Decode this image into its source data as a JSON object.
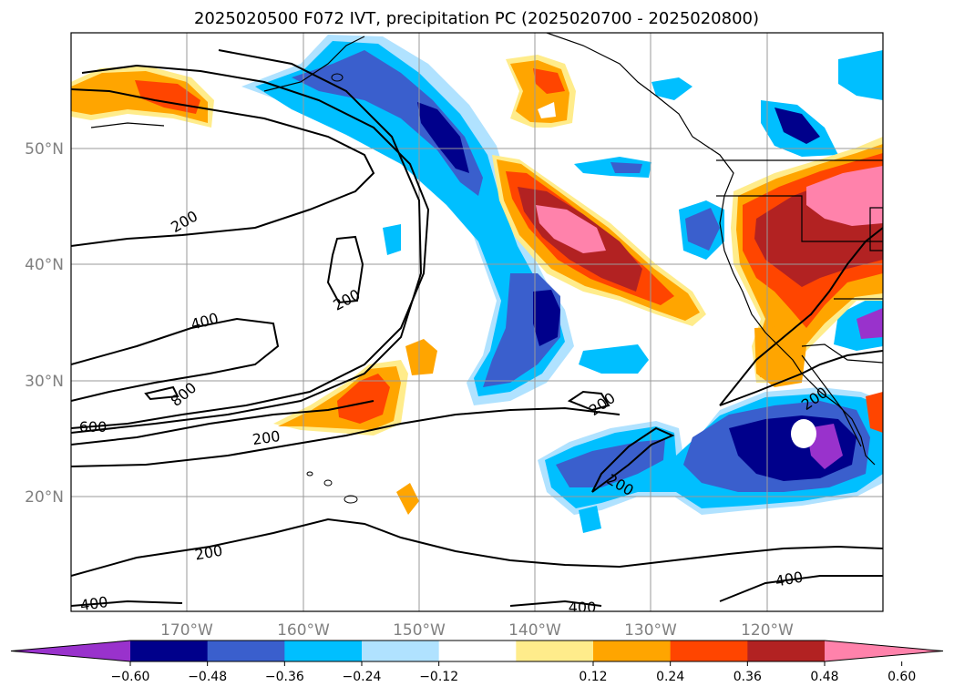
{
  "map": {
    "title": "2025020500 F072 IVT, precipitation PC (2025020700 - 2025020800)",
    "lon_labels": [
      "170°W",
      "160°W",
      "150°W",
      "140°W",
      "130°W",
      "120°W"
    ],
    "lat_labels": [
      "50°N",
      "40°N",
      "30°N",
      "20°N"
    ],
    "contour_labels": [
      "200",
      "200",
      "400",
      "800",
      "600",
      "200",
      "200",
      "200",
      "200",
      "400",
      "400",
      "400",
      "200"
    ],
    "colors": {
      "neg_extreme": "#9932cc",
      "navy": "#00008b",
      "royal": "#3a5fcd",
      "sky": "#00bfff",
      "light_sky": "#b0e2ff",
      "light_yellow": "#ffec8b",
      "orange": "#ffa500",
      "orange_red": "#ff4500",
      "brick": "#b22222",
      "pink": "#ff82ab"
    }
  },
  "colorbar": {
    "ticks": [
      "−0.60",
      "−0.48",
      "−0.36",
      "−0.24",
      "−0.12",
      "0.12",
      "0.24",
      "0.36",
      "0.48",
      "0.60"
    ],
    "bins": [
      "#9932cc",
      "#00008b",
      "#3a5fcd",
      "#00bfff",
      "#b0e2ff",
      "#ffffff",
      "#ffec8b",
      "#ffa500",
      "#ff4500",
      "#b22222",
      "#ff82ab"
    ]
  }
}
